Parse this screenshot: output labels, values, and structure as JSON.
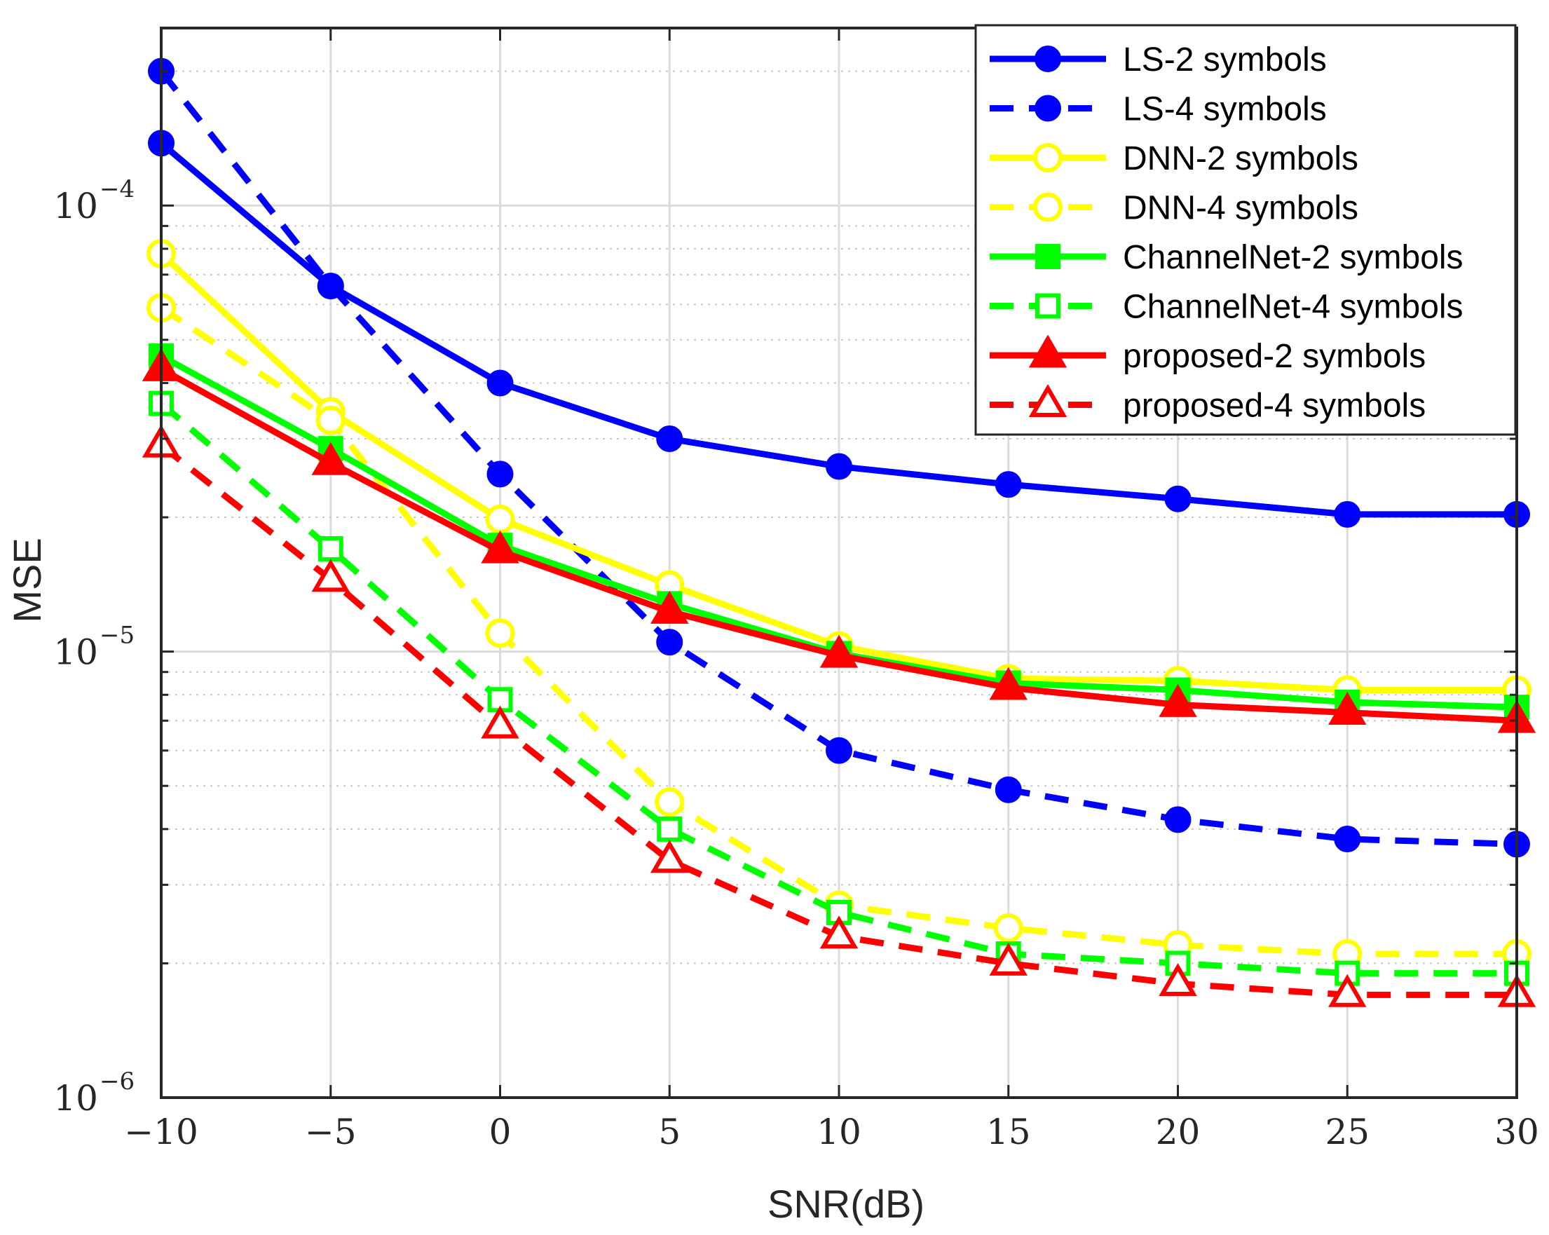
{
  "chart_data": {
    "type": "line",
    "xlabel": "SNR(dB)",
    "ylabel": "MSE",
    "yscale": "log",
    "x": [
      -10,
      -5,
      0,
      5,
      10,
      15,
      20,
      25,
      30
    ],
    "xlim": [
      -10,
      30
    ],
    "ylim": [
      1e-06,
      0.00025
    ],
    "xticks": [
      -10,
      -5,
      0,
      5,
      10,
      15,
      20,
      25,
      30
    ],
    "xtick_labels": [
      "−10",
      "−5",
      "0",
      "5",
      "10",
      "15",
      "20",
      "25",
      "30"
    ],
    "yticks": [
      {
        "base": "10",
        "exp": "−4",
        "value": 0.0001
      },
      {
        "base": "10",
        "exp": "−5",
        "value": 1e-05
      },
      {
        "base": "10",
        "exp": "−6",
        "value": 1e-06
      }
    ],
    "grid": true,
    "legend_position": "top-right",
    "series": [
      {
        "name": "LS-2 symbols",
        "color": "#0000ff",
        "dash": "solid",
        "marker": "circle-filled",
        "values": [
          0.000138,
          6.6e-05,
          4e-05,
          3e-05,
          2.6e-05,
          2.37e-05,
          2.2e-05,
          2.03e-05,
          2.03e-05
        ]
      },
      {
        "name": "LS-4 symbols",
        "color": "#0000ff",
        "dash": "dashed",
        "marker": "circle-filled",
        "values": [
          0.0002,
          6.6e-05,
          2.5e-05,
          1.05e-05,
          6e-06,
          4.9e-06,
          4.2e-06,
          3.8e-06,
          3.7e-06
        ]
      },
      {
        "name": "DNN-2 symbols",
        "color": "#ffff00",
        "dash": "solid",
        "marker": "circle-open",
        "values": [
          7.8e-05,
          3.45e-05,
          1.98e-05,
          1.41e-05,
          1.03e-05,
          8.7e-06,
          8.6e-06,
          8.2e-06,
          8.2e-06
        ]
      },
      {
        "name": "DNN-4 symbols",
        "color": "#ffff00",
        "dash": "dashed",
        "marker": "circle-open",
        "values": [
          5.9e-05,
          3.3e-05,
          1.1e-05,
          4.6e-06,
          2.7e-06,
          2.4e-06,
          2.2e-06,
          2.1e-06,
          2.1e-06
        ]
      },
      {
        "name": "ChannelNet-2 symbols",
        "color": "#00ff00",
        "dash": "solid",
        "marker": "square-filled",
        "values": [
          4.6e-05,
          2.85e-05,
          1.73e-05,
          1.28e-05,
          9.9e-06,
          8.5e-06,
          8.2e-06,
          7.7e-06,
          7.5e-06
        ]
      },
      {
        "name": "ChannelNet-4 symbols",
        "color": "#00ff00",
        "dash": "dashed",
        "marker": "square-open",
        "values": [
          3.6e-05,
          1.7e-05,
          7.8e-06,
          4e-06,
          2.6e-06,
          2.1e-06,
          2e-06,
          1.9e-06,
          1.9e-06
        ]
      },
      {
        "name": "proposed-2 symbols",
        "color": "#ff0000",
        "dash": "solid",
        "marker": "triangle-filled",
        "values": [
          4.3e-05,
          2.65e-05,
          1.68e-05,
          1.23e-05,
          9.8e-06,
          8.3e-06,
          7.6e-06,
          7.3e-06,
          7e-06
        ]
      },
      {
        "name": "proposed-4 symbols",
        "color": "#ff0000",
        "dash": "dashed",
        "marker": "triangle-open",
        "values": [
          2.9e-05,
          1.45e-05,
          6.8e-06,
          3.4e-06,
          2.3e-06,
          2e-06,
          1.8e-06,
          1.7e-06,
          1.7e-06
        ]
      }
    ]
  }
}
